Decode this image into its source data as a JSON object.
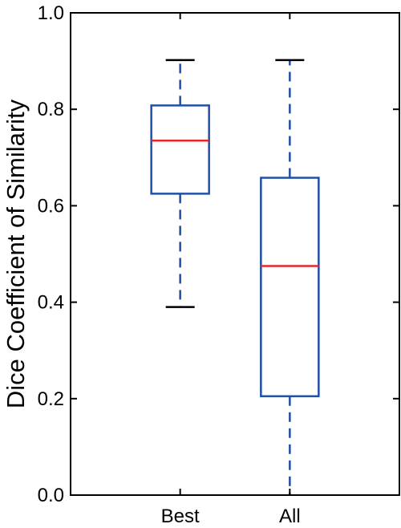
{
  "chart_data": {
    "type": "box",
    "title": "",
    "xlabel": "",
    "ylabel": "Dice Coefficient of Similarity",
    "ylim": [
      0.0,
      1.0
    ],
    "yticks": [
      0.0,
      0.2,
      0.4,
      0.6,
      0.8,
      1.0
    ],
    "ytick_labels": [
      "0.0",
      "0.2",
      "0.4",
      "0.6",
      "0.8",
      "1.0"
    ],
    "categories": [
      "Best",
      "All"
    ],
    "boxes": [
      {
        "category": "Best",
        "whisker_low": 0.39,
        "q1": 0.625,
        "median": 0.735,
        "q3": 0.808,
        "whisker_high": 0.902
      },
      {
        "category": "All",
        "whisker_low": 0.0,
        "q1": 0.205,
        "median": 0.475,
        "q3": 0.658,
        "whisker_high": 0.902
      }
    ],
    "grid": false,
    "colors": {
      "box": "#1f4fa6",
      "median": "#e8262a",
      "cap": "#000000",
      "axis": "#000000"
    }
  }
}
